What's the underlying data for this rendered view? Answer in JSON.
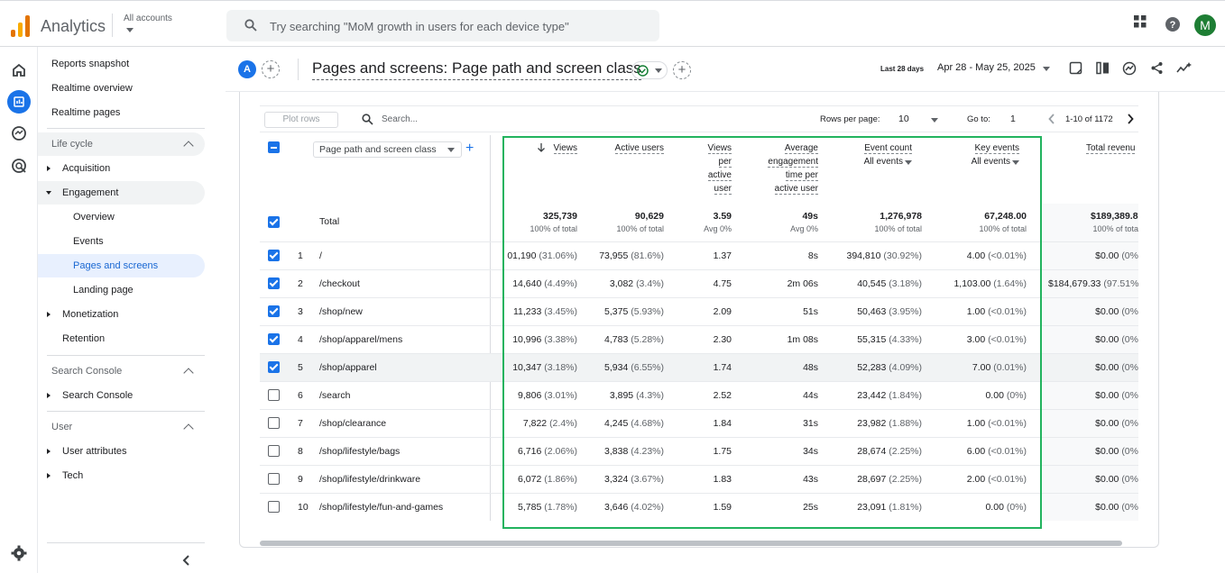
{
  "app": {
    "name": "Analytics",
    "accounts_label": "All accounts",
    "search_placeholder": "Try searching \"MoM growth in users for each device type\"",
    "avatar_letter": "M"
  },
  "sidebar": {
    "items": [
      {
        "label": "Reports snapshot"
      },
      {
        "label": "Realtime overview"
      },
      {
        "label": "Realtime pages"
      }
    ],
    "sections": [
      {
        "title": "Life cycle",
        "items": [
          {
            "label": "Acquisition"
          },
          {
            "label": "Engagement"
          },
          {
            "label": "Overview"
          },
          {
            "label": "Events"
          },
          {
            "label": "Pages and screens"
          },
          {
            "label": "Landing page"
          },
          {
            "label": "Monetization"
          },
          {
            "label": "Retention"
          }
        ]
      },
      {
        "title": "Search Console",
        "items": [
          {
            "label": "Search Console"
          }
        ]
      },
      {
        "title": "User",
        "items": [
          {
            "label": "User attributes"
          },
          {
            "label": "Tech"
          }
        ]
      }
    ]
  },
  "header": {
    "badge": "A",
    "title": "Pages and screens: Page path and screen class",
    "date_label": "Last 28 days",
    "date_range": "Apr 28 - May 25, 2025"
  },
  "toolbar": {
    "plot_rows": "Plot rows",
    "search": "Search...",
    "rows_per_page_label": "Rows per page:",
    "rows_per_page": "10",
    "goto_label": "Go to:",
    "goto_value": "1",
    "range": "1-10 of 1172"
  },
  "table": {
    "dimension": "Page path and screen class",
    "columns": {
      "views": "Views",
      "active_users": "Active users",
      "vpu": [
        "Views",
        "per",
        "active",
        "user"
      ],
      "aet": [
        "Average",
        "engagement",
        "time per",
        "active user"
      ],
      "event_count": "Event count",
      "key_events": "Key events",
      "all_events": "All events",
      "total_revenue": "Total revenu"
    },
    "total": {
      "label": "Total",
      "views": "325,739",
      "views_sub": "100% of total",
      "active_users": "90,629",
      "active_users_sub": "100% of total",
      "vpu": "3.59",
      "vpu_sub": "Avg 0%",
      "aet": "49s",
      "aet_sub": "Avg 0%",
      "event_count": "1,276,978",
      "event_count_sub": "100% of total",
      "key_events": "67,248.00",
      "key_events_sub": "100% of total",
      "revenue": "$189,389.8",
      "revenue_sub": "100% of tota"
    },
    "rows": [
      {
        "n": "1",
        "checked": true,
        "page": "/",
        "views": "01,190",
        "views_p": "(31.06%)",
        "users": "73,955",
        "users_p": "(81.6%)",
        "vpu": "1.37",
        "aet": "8s",
        "ev": "394,810",
        "ev_p": "(30.92%)",
        "ke": "4.00",
        "ke_p": "(<0.01%)",
        "rev": "$0.00",
        "rev_p": "(0%"
      },
      {
        "n": "2",
        "checked": true,
        "page": "/checkout",
        "views": "14,640",
        "views_p": "(4.49%)",
        "users": "3,082",
        "users_p": "(3.4%)",
        "vpu": "4.75",
        "aet": "2m 06s",
        "ev": "40,545",
        "ev_p": "(3.18%)",
        "ke": "1,103.00",
        "ke_p": "(1.64%)",
        "rev": "$184,679.33",
        "rev_p": "(97.51%"
      },
      {
        "n": "3",
        "checked": true,
        "page": "/shop/new",
        "views": "11,233",
        "views_p": "(3.45%)",
        "users": "5,375",
        "users_p": "(5.93%)",
        "vpu": "2.09",
        "aet": "51s",
        "ev": "50,463",
        "ev_p": "(3.95%)",
        "ke": "1.00",
        "ke_p": "(<0.01%)",
        "rev": "$0.00",
        "rev_p": "(0%"
      },
      {
        "n": "4",
        "checked": true,
        "page": "/shop/apparel/mens",
        "views": "10,996",
        "views_p": "(3.38%)",
        "users": "4,783",
        "users_p": "(5.28%)",
        "vpu": "2.30",
        "aet": "1m 08s",
        "ev": "55,315",
        "ev_p": "(4.33%)",
        "ke": "3.00",
        "ke_p": "(<0.01%)",
        "rev": "$0.00",
        "rev_p": "(0%"
      },
      {
        "n": "5",
        "checked": true,
        "page": "/shop/apparel",
        "views": "10,347",
        "views_p": "(3.18%)",
        "users": "5,934",
        "users_p": "(6.55%)",
        "vpu": "1.74",
        "aet": "48s",
        "ev": "52,283",
        "ev_p": "(4.09%)",
        "ke": "7.00",
        "ke_p": "(0.01%)",
        "rev": "$0.00",
        "rev_p": "(0%"
      },
      {
        "n": "6",
        "checked": false,
        "page": "/search",
        "views": "9,806",
        "views_p": "(3.01%)",
        "users": "3,895",
        "users_p": "(4.3%)",
        "vpu": "2.52",
        "aet": "44s",
        "ev": "23,442",
        "ev_p": "(1.84%)",
        "ke": "0.00",
        "ke_p": "(0%)",
        "rev": "$0.00",
        "rev_p": "(0%"
      },
      {
        "n": "7",
        "checked": false,
        "page": "/shop/clearance",
        "views": "7,822",
        "views_p": "(2.4%)",
        "users": "4,245",
        "users_p": "(4.68%)",
        "vpu": "1.84",
        "aet": "31s",
        "ev": "23,982",
        "ev_p": "(1.88%)",
        "ke": "1.00",
        "ke_p": "(<0.01%)",
        "rev": "$0.00",
        "rev_p": "(0%"
      },
      {
        "n": "8",
        "checked": false,
        "page": "/shop/lifestyle/bags",
        "views": "6,716",
        "views_p": "(2.06%)",
        "users": "3,838",
        "users_p": "(4.23%)",
        "vpu": "1.75",
        "aet": "34s",
        "ev": "28,674",
        "ev_p": "(2.25%)",
        "ke": "6.00",
        "ke_p": "(<0.01%)",
        "rev": "$0.00",
        "rev_p": "(0%"
      },
      {
        "n": "9",
        "checked": false,
        "page": "/shop/lifestyle/drinkware",
        "views": "6,072",
        "views_p": "(1.86%)",
        "users": "3,324",
        "users_p": "(3.67%)",
        "vpu": "1.83",
        "aet": "43s",
        "ev": "28,697",
        "ev_p": "(2.25%)",
        "ke": "2.00",
        "ke_p": "(<0.01%)",
        "rev": "$0.00",
        "rev_p": "(0%"
      },
      {
        "n": "10",
        "checked": false,
        "page": "/shop/lifestyle/fun-and-games",
        "views": "5,785",
        "views_p": "(1.78%)",
        "users": "3,646",
        "users_p": "(4.02%)",
        "vpu": "1.59",
        "aet": "25s",
        "ev": "23,091",
        "ev_p": "(1.81%)",
        "ke": "0.00",
        "ke_p": "(0%)",
        "rev": "$0.00",
        "rev_p": "(0%"
      }
    ]
  }
}
